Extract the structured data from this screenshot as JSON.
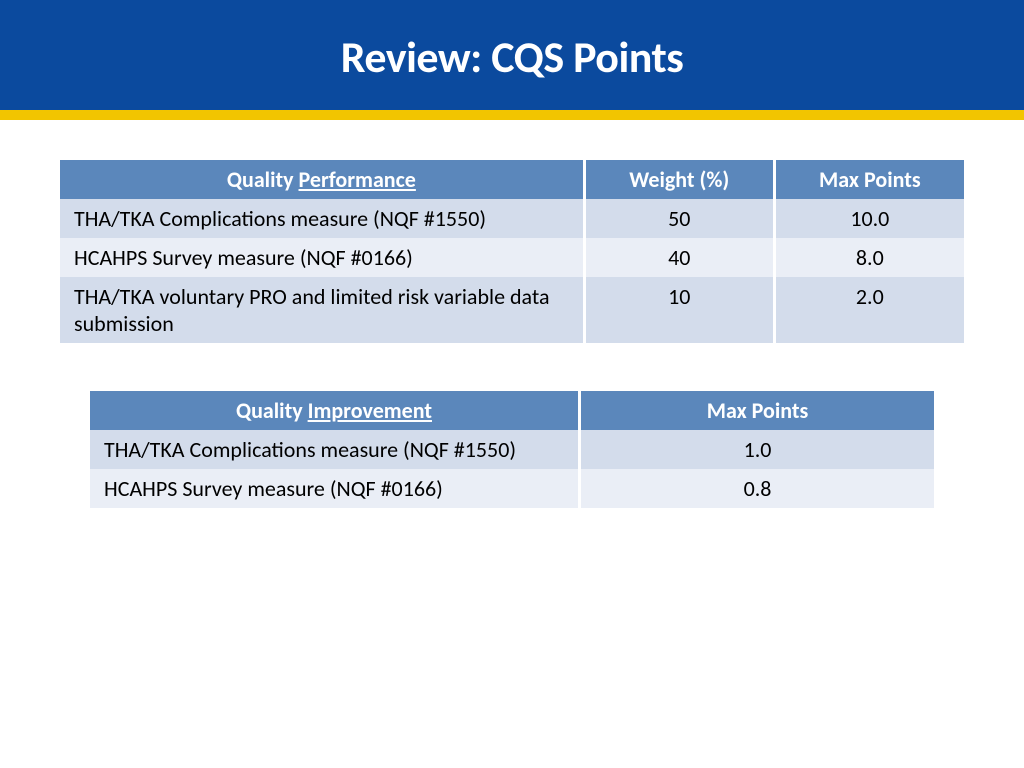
{
  "header": {
    "title": "Review: CQS Points"
  },
  "colors": {
    "header_bg": "#0b4a9e",
    "accent_bar": "#f2c500",
    "table_header_bg": "#5b87bb",
    "row_odd_bg": "#d3dceb",
    "row_even_bg": "#eaeef6"
  },
  "table1": {
    "type": "table",
    "header": {
      "col1_prefix": "Quality ",
      "col1_underline": "Performance",
      "col2": "Weight (%)",
      "col3": "Max Points"
    },
    "rows": [
      {
        "measure": "THA/TKA Complications measure (NQF #1550)",
        "weight": "50",
        "max": "10.0"
      },
      {
        "measure": "HCAHPS Survey measure (NQF #0166)",
        "weight": "40",
        "max": "8.0"
      },
      {
        "measure": "THA/TKA voluntary PRO and limited risk variable data submission",
        "weight": "10",
        "max": "2.0"
      }
    ]
  },
  "table2": {
    "type": "table",
    "header": {
      "col1_prefix": "Quality ",
      "col1_underline": "Improvement",
      "col2": "Max Points"
    },
    "rows": [
      {
        "measure": "THA/TKA Complications measure (NQF #1550)",
        "max": "1.0"
      },
      {
        "measure": "HCAHPS Survey measure (NQF #0166)",
        "max": "0.8"
      }
    ]
  }
}
